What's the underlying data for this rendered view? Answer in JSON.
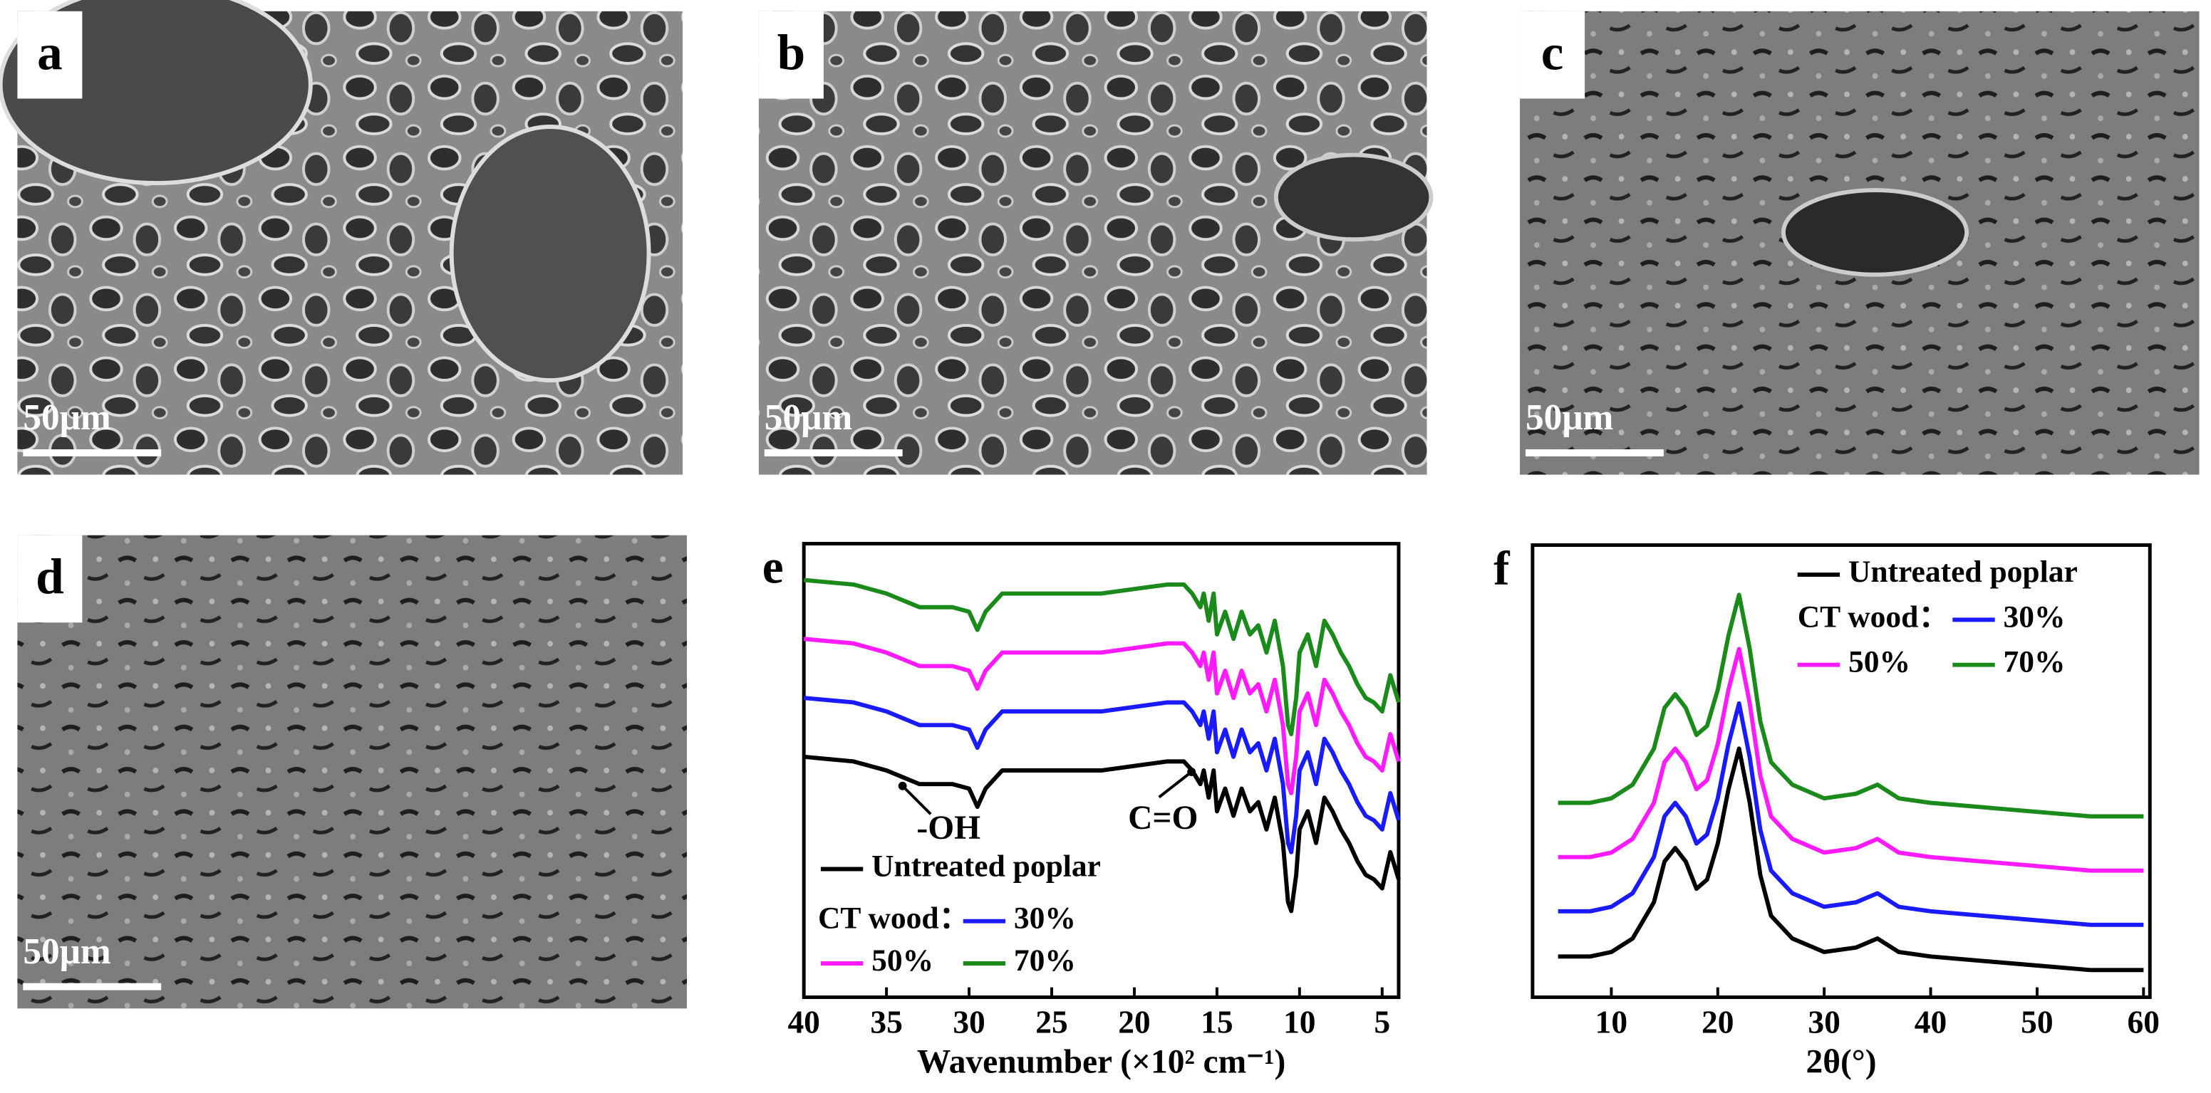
{
  "panels": [
    {
      "label": "a",
      "scale_bar": "50μm"
    },
    {
      "label": "b",
      "scale_bar": "50μm"
    },
    {
      "label": "c",
      "scale_bar": "50μm"
    },
    {
      "label": "d",
      "scale_bar": "50μm"
    }
  ],
  "chart_data": [
    {
      "type": "line",
      "panel_label": "e",
      "x_label": "Wavenumber (×10² cm⁻¹)",
      "x": [
        40,
        37,
        35,
        33,
        31,
        30,
        29.5,
        29,
        28,
        26,
        24,
        22,
        20,
        18,
        17,
        16.5,
        16,
        15.8,
        15.5,
        15.2,
        15,
        14.5,
        14,
        13.5,
        13,
        12.5,
        12,
        11.5,
        11,
        10.7,
        10.5,
        10.2,
        10,
        9.5,
        9,
        8.5,
        8,
        7.5,
        7,
        6.5,
        6,
        5.5,
        5,
        4.5,
        4
      ],
      "xlim": [
        40,
        4
      ],
      "xticks": [
        40,
        35,
        30,
        25,
        20,
        15,
        10,
        5
      ],
      "ylim": [
        0,
        100
      ],
      "legend_prefix": "CT wood：",
      "annotations": [
        {
          "text": "-OH"
        },
        {
          "text": "C=O"
        }
      ],
      "series": [
        {
          "name": "Untreated poplar",
          "color": "#000000",
          "values": [
            53,
            52,
            50,
            47,
            47,
            46,
            42,
            46,
            50,
            50,
            50,
            50,
            51,
            52,
            52,
            50,
            47,
            50,
            44,
            50,
            41,
            46,
            40,
            46,
            41,
            43,
            37,
            44,
            34,
            21,
            19,
            27,
            37,
            41,
            34,
            44,
            41,
            37,
            34,
            30,
            27,
            26,
            24,
            32,
            26
          ]
        },
        {
          "name": "30%",
          "color": "#1a1aff",
          "values": [
            66,
            65,
            63,
            60,
            60,
            59,
            55,
            59,
            63,
            63,
            63,
            63,
            64,
            65,
            65,
            63,
            60,
            63,
            57,
            63,
            54,
            59,
            53,
            59,
            54,
            56,
            50,
            57,
            47,
            34,
            32,
            40,
            50,
            54,
            47,
            57,
            54,
            50,
            47,
            43,
            40,
            39,
            37,
            45,
            39
          ]
        },
        {
          "name": "50%",
          "color": "#ff1aff",
          "values": [
            79,
            78,
            76,
            73,
            73,
            72,
            68,
            72,
            76,
            76,
            76,
            76,
            77,
            78,
            78,
            76,
            73,
            76,
            70,
            76,
            67,
            72,
            66,
            72,
            67,
            69,
            63,
            70,
            60,
            47,
            45,
            53,
            63,
            67,
            60,
            70,
            67,
            63,
            60,
            56,
            53,
            52,
            50,
            58,
            52
          ]
        },
        {
          "name": "70%",
          "color": "#1a8a1a",
          "values": [
            92,
            91,
            89,
            86,
            86,
            85,
            81,
            85,
            89,
            89,
            89,
            89,
            90,
            91,
            91,
            89,
            86,
            89,
            83,
            89,
            80,
            85,
            79,
            85,
            80,
            82,
            76,
            83,
            73,
            60,
            58,
            66,
            76,
            80,
            73,
            83,
            80,
            76,
            73,
            69,
            66,
            65,
            63,
            71,
            65
          ]
        }
      ]
    },
    {
      "type": "line",
      "panel_label": "f",
      "x_label": "2θ(°)",
      "x": [
        5,
        8,
        10,
        12,
        14,
        15,
        16,
        17,
        18,
        19,
        20,
        21,
        22,
        23,
        24,
        25,
        27,
        30,
        33,
        35,
        37,
        40,
        45,
        50,
        55,
        60
      ],
      "xlim": [
        2.6,
        60.6
      ],
      "xticks": [
        10,
        20,
        30,
        40,
        50,
        60
      ],
      "ylim": [
        0,
        100
      ],
      "legend_prefix": "CT wood：",
      "series": [
        {
          "name": "Untreated poplar",
          "color": "#000000",
          "values": [
            9,
            9,
            10,
            13,
            21,
            30,
            33,
            30,
            24,
            26,
            34,
            46,
            55,
            43,
            27,
            18,
            13,
            10,
            11,
            13,
            10,
            9,
            8,
            7,
            6,
            6
          ]
        },
        {
          "name": "30%",
          "color": "#1a1aff",
          "values": [
            19,
            19,
            20,
            23,
            31,
            40,
            43,
            40,
            34,
            36,
            44,
            56,
            65,
            53,
            37,
            28,
            23,
            20,
            21,
            23,
            20,
            19,
            18,
            17,
            16,
            16
          ]
        },
        {
          "name": "50%",
          "color": "#ff1aff",
          "values": [
            31,
            31,
            32,
            35,
            43,
            52,
            55,
            52,
            46,
            48,
            56,
            68,
            77,
            65,
            49,
            40,
            35,
            32,
            33,
            35,
            32,
            31,
            30,
            29,
            28,
            28
          ]
        },
        {
          "name": "70%",
          "color": "#1a8a1a",
          "values": [
            43,
            43,
            44,
            47,
            55,
            64,
            67,
            64,
            58,
            60,
            68,
            80,
            89,
            77,
            61,
            52,
            47,
            44,
            45,
            47,
            44,
            43,
            42,
            41,
            40,
            40
          ]
        }
      ]
    }
  ]
}
